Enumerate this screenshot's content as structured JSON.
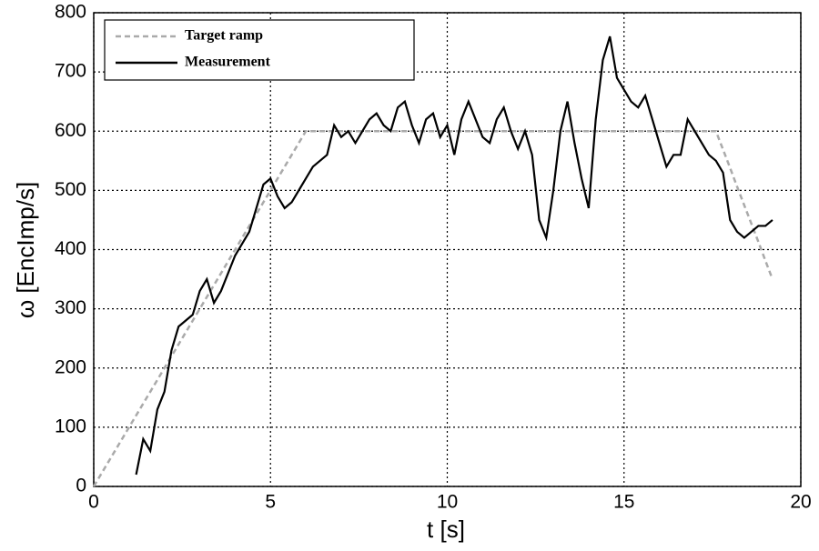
{
  "chart_data": {
    "type": "line",
    "x_label": "t [s]",
    "y_label": "ω [EncImp/s]",
    "x": [
      0,
      0.2,
      0.4,
      0.6,
      0.8,
      1,
      1.2,
      1.4,
      1.6,
      1.8,
      2,
      2.2,
      2.4,
      2.6,
      2.8,
      3,
      3.2,
      3.4,
      3.6,
      3.8,
      4,
      4.2,
      4.4,
      4.6,
      4.8,
      5,
      5.2,
      5.4,
      5.6,
      5.8,
      6,
      6.2,
      6.4,
      6.6,
      6.8,
      7,
      7.2,
      7.4,
      7.6,
      7.8,
      8,
      8.2,
      8.4,
      8.6,
      8.8,
      9,
      9.2,
      9.4,
      9.6,
      9.8,
      10,
      10.2,
      10.4,
      10.6,
      10.8,
      11,
      11.2,
      11.4,
      11.6,
      11.8,
      12,
      12.2,
      12.4,
      12.6,
      12.8,
      13,
      13.2,
      13.4,
      13.6,
      13.8,
      14,
      14.2,
      14.4,
      14.6,
      14.8,
      15,
      15.2,
      15.4,
      15.6,
      15.8,
      16,
      16.2,
      16.4,
      16.6,
      16.8,
      17,
      17.2,
      17.4,
      17.6,
      17.8,
      18,
      18.2,
      18.4,
      18.6,
      18.8,
      19,
      19.2
    ],
    "series": [
      {
        "name": "Target ramp",
        "color": "#aaaaaa",
        "dashed": true,
        "values": [
          0,
          20,
          40,
          60,
          80,
          100,
          120,
          140,
          160,
          180,
          200,
          220,
          240,
          260,
          280,
          300,
          320,
          340,
          360,
          380,
          400,
          420,
          440,
          460,
          480,
          500,
          520,
          540,
          560,
          580,
          600,
          600,
          600,
          600,
          600,
          600,
          600,
          600,
          600,
          600,
          600,
          600,
          600,
          600,
          600,
          600,
          600,
          600,
          600,
          600,
          600,
          600,
          600,
          600,
          600,
          600,
          600,
          600,
          600,
          600,
          600,
          600,
          600,
          600,
          600,
          600,
          600,
          600,
          600,
          600,
          600,
          600,
          600,
          600,
          600,
          600,
          600,
          600,
          600,
          600,
          600,
          600,
          600,
          600,
          600,
          600,
          600,
          600,
          600,
          569,
          538,
          506,
          475,
          444,
          413,
          381,
          350
        ]
      },
      {
        "name": "Measurement",
        "color": "#000000",
        "dashed": false,
        "values": [
          null,
          null,
          null,
          null,
          null,
          null,
          20,
          80,
          60,
          130,
          160,
          230,
          270,
          280,
          290,
          330,
          350,
          310,
          330,
          360,
          390,
          410,
          430,
          470,
          510,
          520,
          490,
          470,
          480,
          500,
          520,
          540,
          550,
          560,
          610,
          590,
          600,
          580,
          600,
          620,
          630,
          610,
          600,
          640,
          650,
          610,
          580,
          620,
          630,
          590,
          610,
          560,
          620,
          650,
          620,
          590,
          580,
          620,
          640,
          600,
          570,
          600,
          560,
          450,
          420,
          500,
          600,
          650,
          580,
          520,
          470,
          620,
          720,
          760,
          690,
          670,
          650,
          640,
          660,
          620,
          580,
          540,
          560,
          560,
          620,
          600,
          580,
          560,
          550,
          530,
          450,
          430,
          420,
          430,
          440,
          440,
          450
        ]
      }
    ],
    "xlim": [
      0,
      20
    ],
    "xticks": [
      0,
      5,
      10,
      15,
      20
    ],
    "ylim": [
      0,
      800
    ],
    "yticks": [
      0,
      100,
      200,
      300,
      400,
      500,
      600,
      700,
      800
    ],
    "grid": true,
    "legend": "upper left"
  }
}
